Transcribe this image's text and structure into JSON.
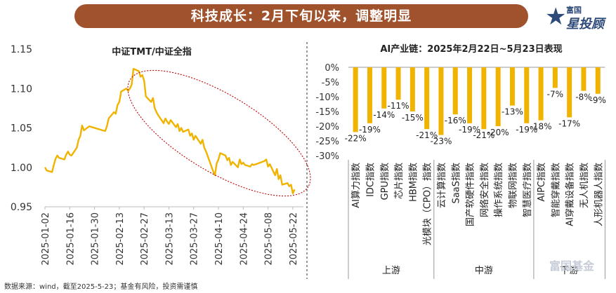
{
  "header": {
    "title": "科技成长：2月下旬以来，调整明显"
  },
  "logo": {
    "line1": "富国",
    "line2": "星投顾",
    "icon": "star-icon"
  },
  "watermark": "富国基金",
  "source": "数据来源：wind，截至2025-5-23；基金有风险，投资需谨慎",
  "colors": {
    "accent": "#f0b400",
    "banner": "#a0522d",
    "ellipse": "#c00000"
  },
  "chart_data": [
    {
      "type": "line",
      "title": "中证TMT/中证全指",
      "xlabel": "",
      "ylabel": "",
      "ylim": [
        0.95,
        1.15
      ],
      "yticks": [
        "1.15",
        "1.10",
        "1.05",
        "1.00",
        "0.95"
      ],
      "xticks": [
        "2025-01-02",
        "2025-01-16",
        "2025-01-30",
        "2025-02-13",
        "2025-02-27",
        "2025-03-13",
        "2025-03-27",
        "2025-04-10",
        "2025-04-24",
        "2025-05-08",
        "2025-05-22"
      ],
      "grid": false,
      "annotation": "ellipse around the decline since late February",
      "x": [
        "2025-01-02",
        "2025-01-03",
        "2025-01-06",
        "2025-01-07",
        "2025-01-08",
        "2025-01-09",
        "2025-01-10",
        "2025-01-13",
        "2025-01-14",
        "2025-01-15",
        "2025-01-16",
        "2025-01-17",
        "2025-01-20",
        "2025-01-21",
        "2025-01-22",
        "2025-01-23",
        "2025-01-24",
        "2025-01-27",
        "2025-02-05",
        "2025-02-06",
        "2025-02-07",
        "2025-02-10",
        "2025-02-11",
        "2025-02-12",
        "2025-02-13",
        "2025-02-14",
        "2025-02-17",
        "2025-02-18",
        "2025-02-19",
        "2025-02-20",
        "2025-02-21",
        "2025-02-24",
        "2025-02-25",
        "2025-02-26",
        "2025-02-27",
        "2025-02-28",
        "2025-03-03",
        "2025-03-04",
        "2025-03-05",
        "2025-03-06",
        "2025-03-07",
        "2025-03-10",
        "2025-03-11",
        "2025-03-12",
        "2025-03-13",
        "2025-03-14",
        "2025-03-17",
        "2025-03-18",
        "2025-03-19",
        "2025-03-20",
        "2025-03-21",
        "2025-03-24",
        "2025-03-25",
        "2025-03-26",
        "2025-03-27",
        "2025-03-28",
        "2025-03-31",
        "2025-04-01",
        "2025-04-02",
        "2025-04-03",
        "2025-04-07",
        "2025-04-08",
        "2025-04-09",
        "2025-04-10",
        "2025-04-11",
        "2025-04-14",
        "2025-04-15",
        "2025-04-16",
        "2025-04-17",
        "2025-04-18",
        "2025-04-21",
        "2025-04-22",
        "2025-04-23",
        "2025-04-24",
        "2025-04-25",
        "2025-04-28",
        "2025-04-29",
        "2025-04-30",
        "2025-05-06",
        "2025-05-07",
        "2025-05-08",
        "2025-05-09",
        "2025-05-12",
        "2025-05-13",
        "2025-05-14",
        "2025-05-15",
        "2025-05-16",
        "2025-05-19",
        "2025-05-20",
        "2025-05-21",
        "2025-05-22",
        "2025-05-23"
      ],
      "values": [
        1.0,
        0.996,
        0.994,
        1.003,
        1.011,
        1.015,
        1.012,
        1.01,
        1.016,
        1.02,
        1.016,
        1.015,
        1.025,
        1.035,
        1.04,
        1.053,
        1.047,
        1.052,
        1.046,
        1.052,
        1.062,
        1.07,
        1.068,
        1.079,
        1.083,
        1.096,
        1.1,
        1.097,
        1.1,
        1.105,
        1.125,
        1.122,
        1.115,
        1.117,
        1.11,
        1.09,
        1.083,
        1.088,
        1.075,
        1.07,
        1.066,
        1.056,
        1.062,
        1.058,
        1.055,
        1.06,
        1.051,
        1.055,
        1.046,
        1.05,
        1.045,
        1.048,
        1.04,
        1.043,
        1.035,
        1.04,
        1.03,
        1.035,
        1.025,
        1.02,
        0.995,
        0.99,
        1.005,
        1.01,
        1.018,
        1.015,
        1.009,
        1.012,
        1.003,
        1.007,
        1.0,
        1.01,
        1.004,
        1.006,
        1.003,
        1.001,
        1.004,
        1.003,
        1.008,
        1.01,
        1.001,
        1.004,
        0.99,
        0.998,
        0.985,
        0.99,
        0.978,
        0.98,
        0.976,
        0.978,
        0.967,
        0.972
      ]
    },
    {
      "type": "bar",
      "title": "AI产业链：2025年2月22日~5月23日表现",
      "xlabel": "",
      "ylabel": "",
      "ylim": [
        -30,
        0
      ],
      "yticks": [
        "0%",
        "-5%",
        "-10%",
        "-15%",
        "-20%",
        "-25%",
        "-30%"
      ],
      "categories": [
        "AI算力指数",
        "IDC指数",
        "GPU指数",
        "芯片指数",
        "HBM指数",
        "光模块（CPO）指数",
        "云计算指数",
        "SaaS指数",
        "国产软硬件指数",
        "网络安全指数",
        "操作系统指数",
        "物联网指数",
        "智慧医疗指数",
        "AIPC指数",
        "智能穿戴指数",
        "AI穿戴设备指数",
        "无人机指数",
        "人形机器人指数"
      ],
      "values": [
        -22,
        -19,
        -14,
        -11,
        -15,
        -21,
        -23,
        -16,
        -19,
        -21,
        -20,
        -13,
        -19,
        -18,
        -7,
        -17,
        -8,
        -9
      ],
      "data_labels": [
        "-22%",
        "-19%",
        "-14%",
        "-11%",
        "-15%",
        "-21%",
        "-23%",
        "-16%",
        "-19%",
        "-21%",
        "-20%",
        "-13%",
        "-19%",
        "-18%",
        "-7%",
        "-17%",
        "-8%",
        "-9%"
      ],
      "groups": [
        {
          "name": "上游",
          "start": 0,
          "end": 5
        },
        {
          "name": "中游",
          "start": 6,
          "end": 12
        },
        {
          "name": "下游",
          "start": 13,
          "end": 17
        }
      ]
    }
  ]
}
